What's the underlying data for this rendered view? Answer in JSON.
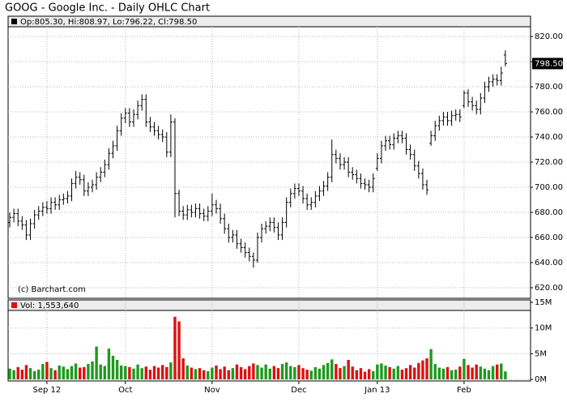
{
  "chart_data": [
    {
      "type": "ohlc",
      "title": "GOOG - Google Inc. - Daily OHLC Chart",
      "header": "Op:805.30, Hi:808.97, Lo:796.22, Cl:798.50",
      "annotation": "(c) Barchart.com",
      "last_label": "798.50",
      "color": "#000000",
      "grid": true,
      "xlim": [
        -0.4,
        126.1
      ],
      "xticks": [
        {
          "value": 9,
          "label": "Sep 12"
        },
        {
          "value": 28,
          "label": "Oct"
        },
        {
          "value": 49,
          "label": "Nov"
        },
        {
          "value": 70,
          "label": "Dec"
        },
        {
          "value": 89,
          "label": "Jan 13"
        },
        {
          "value": 110,
          "label": "Feb"
        }
      ],
      "ylim": [
        611.6,
        827.8
      ],
      "yticks": [
        {
          "value": 620,
          "label": "620.00"
        },
        {
          "value": 640,
          "label": "640.00"
        },
        {
          "value": 660,
          "label": "660.00"
        },
        {
          "value": 680,
          "label": "680.00"
        },
        {
          "value": 700,
          "label": "700.00"
        },
        {
          "value": 720,
          "label": "720.00"
        },
        {
          "value": 740,
          "label": "740.00"
        },
        {
          "value": 760,
          "label": "760.00"
        },
        {
          "value": 780,
          "label": "780.00"
        },
        {
          "value": 800,
          "label": "800.00"
        },
        {
          "value": 820,
          "label": "820.00"
        }
      ],
      "open": [
        672,
        676,
        679,
        673,
        670,
        662,
        671,
        678,
        681,
        684,
        683,
        688,
        686,
        690,
        691,
        693,
        703,
        708,
        706,
        697,
        700,
        702,
        708,
        712,
        718,
        727,
        733,
        745,
        755,
        759,
        752,
        758,
        765,
        770,
        752,
        748,
        745,
        742,
        740,
        728,
        752,
        695,
        681,
        678,
        682,
        680,
        683,
        679,
        677,
        681,
        686,
        683,
        675,
        667,
        660,
        662,
        655,
        652,
        648,
        645,
        642,
        660,
        667,
        669,
        672,
        668,
        662,
        672,
        688,
        695,
        699,
        697,
        691,
        686,
        688,
        693,
        697,
        701,
        708,
        726,
        723,
        718,
        720,
        712,
        710,
        707,
        703,
        702,
        700,
        715,
        723,
        733,
        737,
        734,
        739,
        741,
        739,
        730,
        726,
        717,
        711,
        702,
        735,
        741,
        749,
        753,
        756,
        753,
        757,
        758,
        765,
        775,
        768,
        765,
        762,
        771,
        780,
        784,
        786,
        785,
        805.3
      ],
      "high": [
        680,
        683,
        683,
        677,
        674,
        675,
        682,
        685,
        688,
        689,
        692,
        692,
        694,
        695,
        697,
        707,
        713,
        712,
        710,
        704,
        706,
        712,
        716,
        722,
        731,
        737,
        749,
        759,
        763,
        763,
        762,
        769,
        774,
        774,
        756,
        752,
        749,
        746,
        744,
        758,
        755,
        698,
        685,
        686,
        686,
        687,
        687,
        683,
        685,
        695,
        690,
        687,
        679,
        671,
        666,
        666,
        659,
        656,
        652,
        648,
        664,
        671,
        673,
        676,
        676,
        672,
        676,
        692,
        699,
        703,
        703,
        701,
        695,
        692,
        697,
        701,
        705,
        712,
        738,
        730,
        727,
        724,
        724,
        716,
        714,
        711,
        707,
        706,
        711,
        727,
        737,
        741,
        741,
        743,
        745,
        745,
        743,
        734,
        730,
        721,
        715,
        706,
        745,
        753,
        757,
        760,
        760,
        761,
        762,
        762,
        777,
        778,
        772,
        769,
        775,
        784,
        788,
        790,
        790,
        796,
        808.97
      ],
      "low": [
        668,
        672,
        669,
        666,
        658,
        658,
        667,
        674,
        677,
        679,
        679,
        682,
        682,
        686,
        687,
        689,
        699,
        702,
        693,
        693,
        696,
        698,
        704,
        708,
        714,
        723,
        729,
        741,
        751,
        748,
        748,
        754,
        761,
        748,
        744,
        741,
        738,
        736,
        724,
        724,
        676,
        677,
        674,
        674,
        676,
        676,
        675,
        673,
        673,
        677,
        679,
        671,
        663,
        656,
        656,
        651,
        648,
        644,
        641,
        636,
        640,
        656,
        663,
        665,
        664,
        658,
        658,
        668,
        684,
        691,
        693,
        687,
        682,
        682,
        684,
        689,
        693,
        697,
        704,
        719,
        714,
        714,
        708,
        706,
        703,
        699,
        698,
        696,
        696,
        713,
        719,
        729,
        730,
        730,
        735,
        735,
        726,
        722,
        713,
        707,
        698,
        694,
        733,
        737,
        745,
        749,
        749,
        749,
        753,
        752,
        763,
        764,
        761,
        758,
        758,
        767,
        776,
        780,
        781,
        781,
        796.22
      ],
      "close": [
        676,
        679,
        673,
        670,
        662,
        671,
        678,
        681,
        684,
        683,
        688,
        686,
        690,
        691,
        693,
        703,
        708,
        706,
        697,
        700,
        702,
        708,
        712,
        718,
        727,
        733,
        745,
        755,
        759,
        752,
        758,
        765,
        770,
        752,
        748,
        745,
        742,
        740,
        728,
        752,
        695,
        681,
        678,
        682,
        680,
        683,
        679,
        677,
        681,
        686,
        683,
        675,
        667,
        660,
        662,
        655,
        652,
        648,
        645,
        642,
        660,
        667,
        669,
        672,
        668,
        662,
        672,
        688,
        695,
        699,
        697,
        691,
        686,
        688,
        693,
        697,
        701,
        708,
        726,
        723,
        718,
        720,
        712,
        710,
        707,
        703,
        702,
        700,
        707,
        723,
        733,
        737,
        734,
        739,
        741,
        739,
        730,
        726,
        717,
        711,
        702,
        698,
        741,
        749,
        753,
        756,
        753,
        757,
        758,
        756,
        775,
        768,
        765,
        762,
        771,
        780,
        784,
        786,
        785,
        791,
        798.5
      ]
    },
    {
      "type": "bar",
      "header": "Vol: 1,553,640",
      "up_color": "#1e9a1e",
      "down_color": "#e01010",
      "grid": true,
      "ylim": [
        -300000,
        15000000
      ],
      "yticks": [
        {
          "value": 0,
          "label": "0M"
        },
        {
          "value": 5000000,
          "label": "5M"
        },
        {
          "value": 10000000,
          "label": "10M"
        },
        {
          "value": 15000000,
          "label": "15M"
        }
      ],
      "values": [
        2100000,
        1800000,
        2400000,
        1900000,
        2800000,
        2200000,
        1600000,
        1900000,
        3000000,
        3400000,
        2200000,
        1800000,
        2700000,
        2500000,
        2000000,
        2600000,
        3100000,
        2300000,
        2400000,
        3000000,
        3500000,
        6400000,
        2900000,
        2600000,
        6000000,
        4600000,
        3800000,
        2700000,
        2600000,
        2400000,
        2100000,
        2900000,
        2200000,
        2500000,
        1900000,
        2600000,
        2300000,
        2800000,
        2400000,
        3300000,
        12200000,
        11300000,
        4100000,
        2700000,
        2300000,
        2000000,
        2200000,
        1800000,
        1600000,
        2300000,
        2700000,
        2000000,
        2500000,
        1800000,
        2200000,
        2900000,
        2400000,
        2000000,
        2600000,
        3100000,
        2800000,
        2300000,
        2900000,
        2100000,
        2600000,
        2200000,
        3000000,
        3300000,
        2600000,
        2400000,
        2800000,
        2200000,
        1900000,
        1700000,
        2400000,
        2100000,
        2800000,
        3200000,
        3900000,
        3000000,
        2200000,
        2600000,
        3800000,
        2500000,
        1800000,
        2200000,
        1500000,
        2000000,
        1600000,
        2900000,
        3100000,
        2700000,
        2400000,
        2100000,
        2600000,
        1900000,
        2200000,
        2800000,
        2300000,
        3200000,
        3700000,
        4100000,
        5900000,
        3000000,
        2300000,
        2100000,
        2400000,
        1800000,
        1900000,
        2500000,
        4000000,
        2800000,
        2300000,
        2900000,
        2500000,
        2100000,
        1800000,
        2600000,
        2900000,
        3100000,
        1553640
      ]
    }
  ]
}
